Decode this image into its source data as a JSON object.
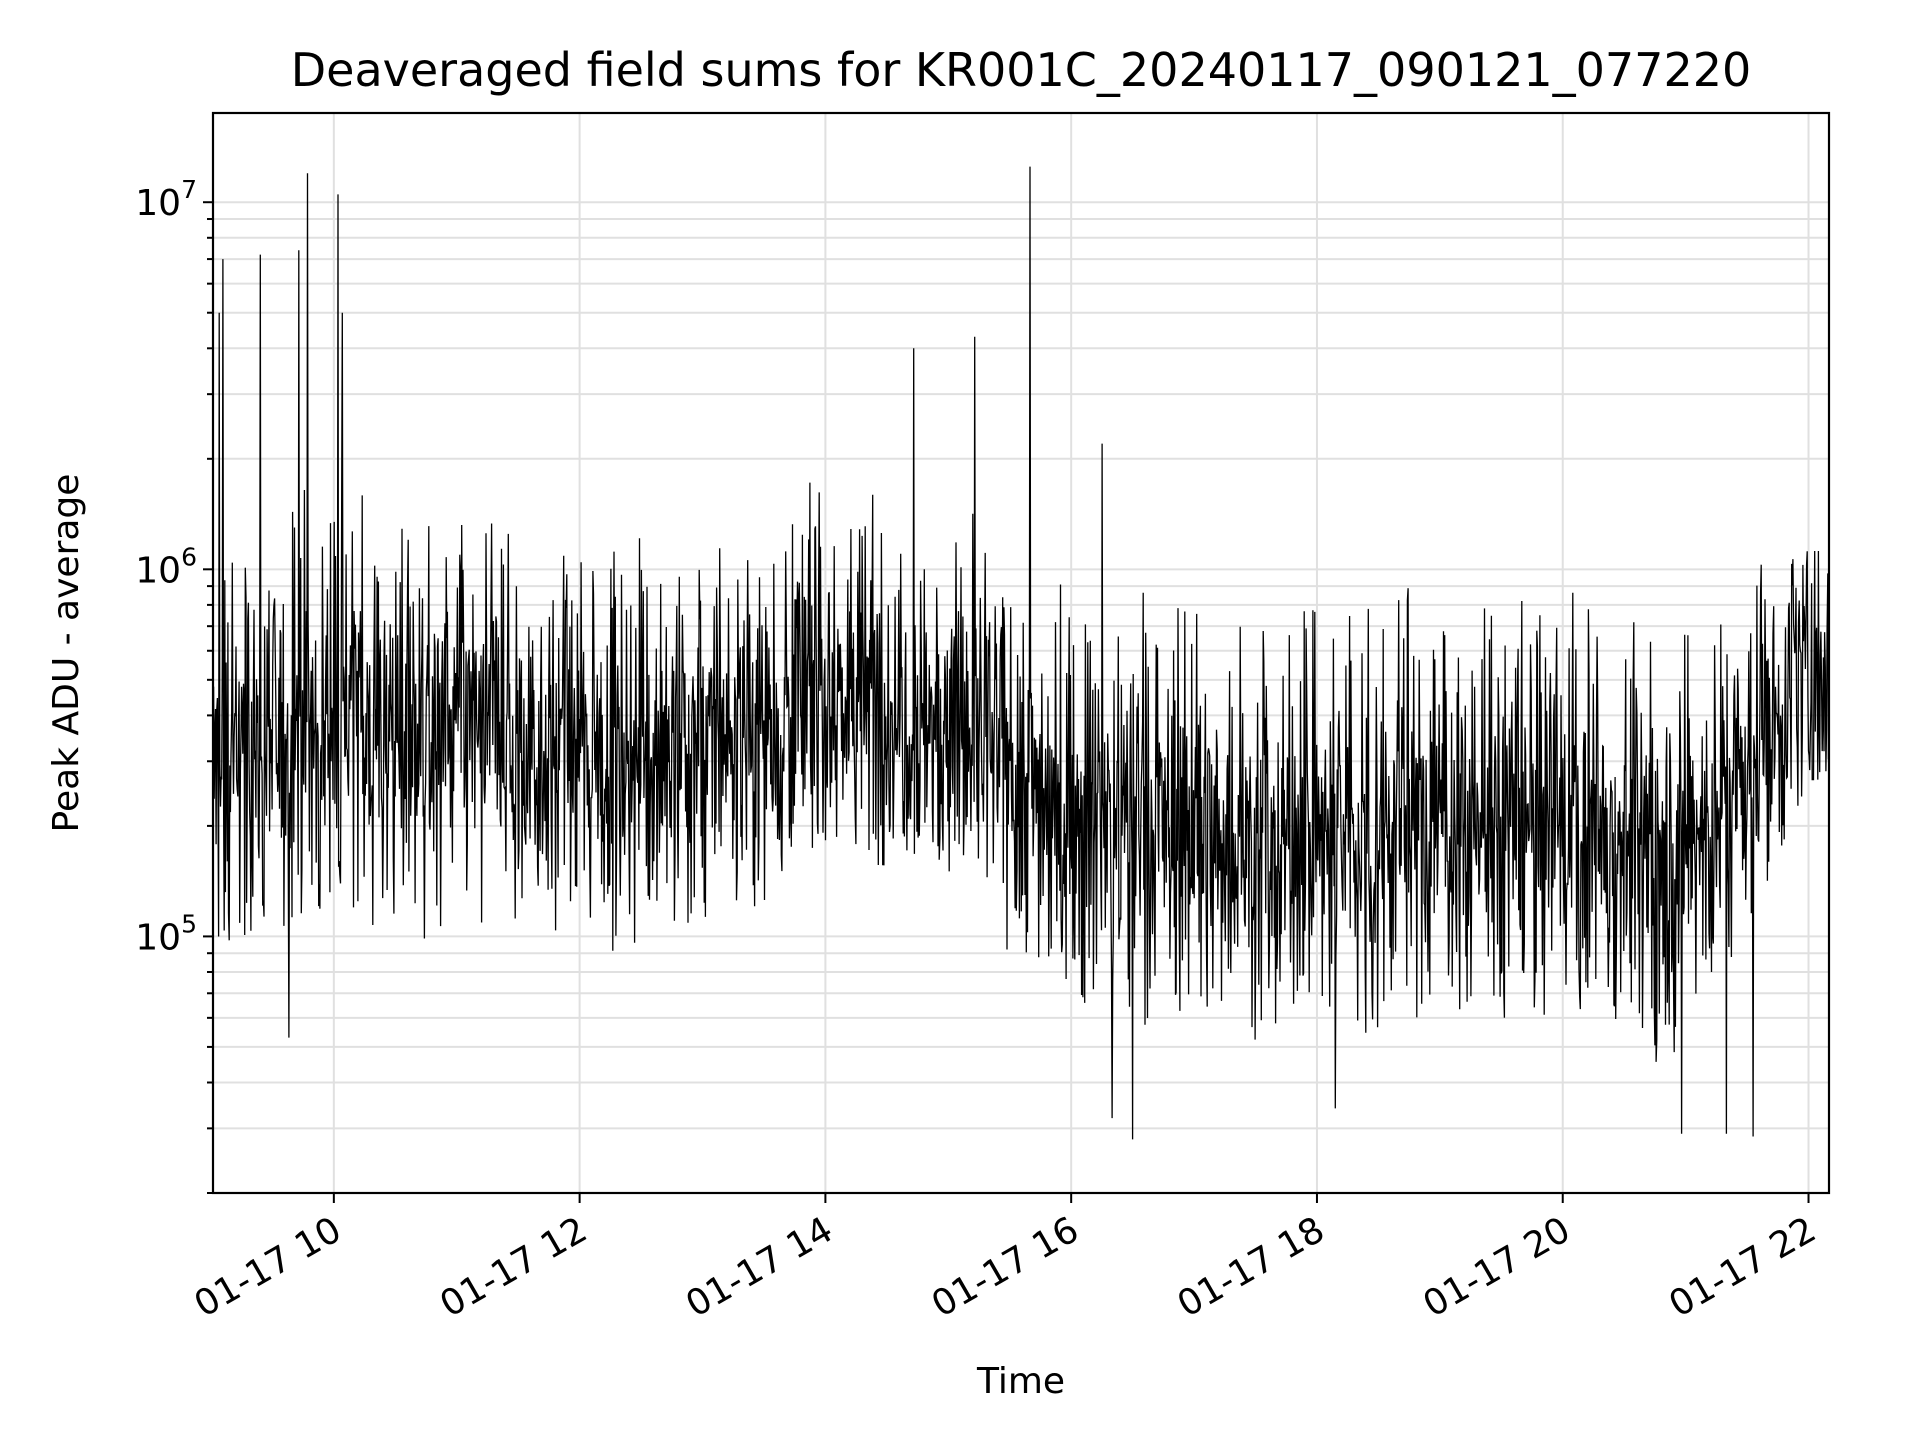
{
  "chart_data": {
    "type": "line",
    "title": "Deaveraged field sums for KR001C_20240117_090121_077220",
    "xlabel": "Time",
    "ylabel": "Peak ADU - average",
    "x_scale": "time",
    "y_scale": "log",
    "xlim": [
      "2024-01-17 09:01",
      "2024-01-17 22:10"
    ],
    "ylim": [
      20000,
      17500000
    ],
    "x_ticks": [
      "01-17 10",
      "01-17 12",
      "01-17 14",
      "01-17 16",
      "01-17 18",
      "01-17 20",
      "01-17 22"
    ],
    "y_ticks": [
      {
        "base": "10",
        "exp": "5"
      },
      {
        "base": "10",
        "exp": "6"
      },
      {
        "base": "10",
        "exp": "7"
      }
    ],
    "grid": true,
    "line_color": "#000000",
    "series": [
      {
        "values_by_hour": [
          {
            "time": "2024-01-17 09:00",
            "typical": 280000,
            "low": 90000,
            "high": 1000000
          },
          {
            "time": "2024-01-17 10:00",
            "typical": 400000,
            "low": 120000,
            "high": 1800000
          },
          {
            "time": "2024-01-17 11:00",
            "typical": 380000,
            "low": 90000,
            "high": 1500000
          },
          {
            "time": "2024-01-17 12:00",
            "typical": 310000,
            "low": 100000,
            "high": 1200000
          },
          {
            "time": "2024-01-17 13:00",
            "typical": 330000,
            "low": 110000,
            "high": 1200000
          },
          {
            "time": "2024-01-17 14:00",
            "typical": 470000,
            "low": 180000,
            "high": 1800000
          },
          {
            "time": "2024-01-17 15:00",
            "typical": 400000,
            "low": 170000,
            "high": 1500000
          },
          {
            "time": "2024-01-17 16:00",
            "typical": 220000,
            "low": 60000,
            "high": 1000000
          },
          {
            "time": "2024-01-17 17:00",
            "typical": 190000,
            "low": 55000,
            "high": 900000
          },
          {
            "time": "2024-01-17 18:00",
            "typical": 180000,
            "low": 50000,
            "high": 900000
          },
          {
            "time": "2024-01-17 19:00",
            "typical": 210000,
            "low": 60000,
            "high": 900000
          },
          {
            "time": "2024-01-17 20:00",
            "typical": 200000,
            "low": 60000,
            "high": 900000
          },
          {
            "time": "2024-01-17 21:00",
            "typical": 170000,
            "low": 45000,
            "high": 800000
          },
          {
            "time": "2024-01-17 22:00",
            "typical": 550000,
            "low": 300000,
            "high": 1000000
          }
        ],
        "spikes": [
          {
            "time": "2024-01-17 09:04",
            "value": 5000000
          },
          {
            "time": "2024-01-17 09:06",
            "value": 7000000
          },
          {
            "time": "2024-01-17 09:24",
            "value": 7200000
          },
          {
            "time": "2024-01-17 09:43",
            "value": 7400000
          },
          {
            "time": "2024-01-17 09:47",
            "value": 12000000
          },
          {
            "time": "2024-01-17 10:02",
            "value": 10500000
          },
          {
            "time": "2024-01-17 10:04",
            "value": 5000000
          },
          {
            "time": "2024-01-17 14:43",
            "value": 4000000
          },
          {
            "time": "2024-01-17 15:13",
            "value": 4300000
          },
          {
            "time": "2024-01-17 15:40",
            "value": 12500000
          },
          {
            "time": "2024-01-17 16:15",
            "value": 2200000
          },
          {
            "time": "2024-01-17 09:38",
            "value": 53000
          },
          {
            "time": "2024-01-17 16:30",
            "value": 28000
          },
          {
            "time": "2024-01-17 16:20",
            "value": 32000
          },
          {
            "time": "2024-01-17 18:09",
            "value": 34000
          },
          {
            "time": "2024-01-17 20:58",
            "value": 29000
          },
          {
            "time": "2024-01-17 21:20",
            "value": 29000
          },
          {
            "time": "2024-01-17 21:33",
            "value": 28500
          }
        ]
      }
    ]
  }
}
